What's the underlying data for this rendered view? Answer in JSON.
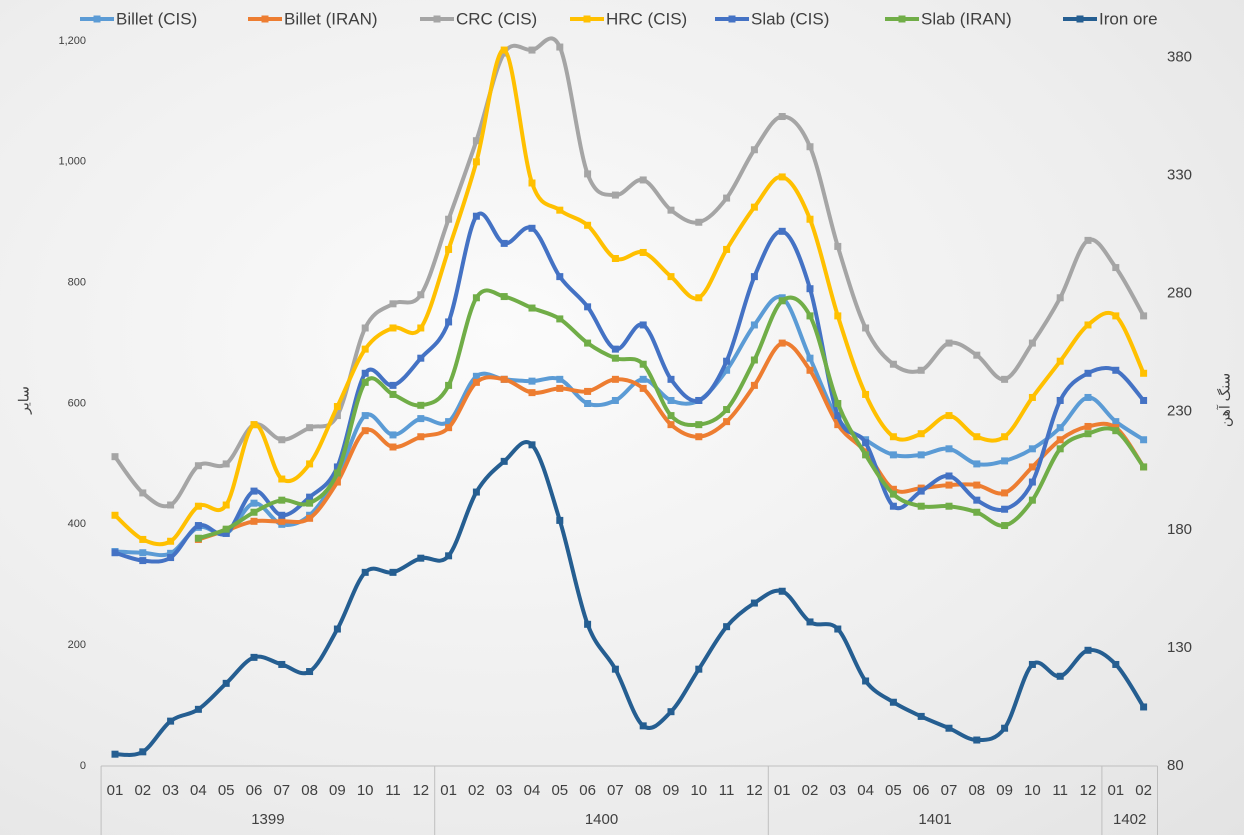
{
  "chart_data": {
    "type": "line",
    "y_label": "سایر",
    "y2_label": "سنگ آهن",
    "categories": [
      "01",
      "02",
      "03",
      "04",
      "05",
      "06",
      "07",
      "08",
      "09",
      "10",
      "11",
      "12",
      "01",
      "02",
      "03",
      "04",
      "05",
      "06",
      "07",
      "08",
      "09",
      "10",
      "11",
      "12",
      "01",
      "02",
      "03",
      "04",
      "05",
      "06",
      "07",
      "08",
      "09",
      "10",
      "11",
      "12",
      "01",
      "02"
    ],
    "year_groups": [
      {
        "label": "1399",
        "count": 12
      },
      {
        "label": "1400",
        "count": 12
      },
      {
        "label": "1401",
        "count": 12
      },
      {
        "label": "1402",
        "count": 2
      }
    ],
    "ylim": [
      0,
      1200
    ],
    "yticks": [
      0,
      200,
      400,
      600,
      800,
      {
        "value": 1000,
        "label": "1,000"
      },
      {
        "value": 1200,
        "label": "1,200"
      }
    ],
    "y2lim": [
      80,
      387
    ],
    "y2ticks": [
      80,
      130,
      180,
      230,
      280,
      330,
      380
    ],
    "grid": false,
    "smooth": true,
    "legend": "top",
    "series": [
      {
        "name": "Billet (CIS)",
        "color": "#5b9bd5",
        "values": [
          355,
          353,
          352,
          395,
          385,
          435,
          400,
          415,
          480,
          580,
          548,
          575,
          570,
          645,
          640,
          637,
          640,
          600,
          605,
          640,
          605,
          605,
          655,
          730,
          775,
          675,
          575,
          540,
          515,
          515,
          525,
          500,
          505,
          525,
          560,
          610,
          570,
          540
        ]
      },
      {
        "name": "Billet (IRAN)",
        "color": "#ed7d31",
        "values": [
          null,
          null,
          null,
          375,
          390,
          405,
          405,
          410,
          470,
          555,
          528,
          545,
          560,
          635,
          640,
          618,
          625,
          620,
          640,
          625,
          565,
          545,
          570,
          630,
          700,
          655,
          565,
          520,
          458,
          460,
          465,
          465,
          452,
          495,
          540,
          562,
          560,
          495
        ]
      },
      {
        "name": "CRC (CIS)",
        "color": "#a5a5a5",
        "values": [
          512,
          452,
          432,
          497,
          500,
          565,
          540,
          560,
          580,
          725,
          765,
          780,
          905,
          1035,
          1180,
          1185,
          1190,
          980,
          945,
          970,
          920,
          900,
          940,
          1020,
          1075,
          1025,
          860,
          725,
          665,
          655,
          700,
          680,
          640,
          700,
          775,
          870,
          825,
          745
        ]
      },
      {
        "name": "HRC (CIS)",
        "color": "#ffc000",
        "values": [
          415,
          375,
          372,
          430,
          432,
          565,
          475,
          500,
          595,
          690,
          725,
          725,
          855,
          1000,
          1185,
          965,
          920,
          895,
          840,
          850,
          810,
          775,
          855,
          925,
          975,
          905,
          745,
          615,
          545,
          550,
          580,
          545,
          545,
          610,
          670,
          730,
          745,
          650
        ]
      },
      {
        "name": "Slab (CIS)",
        "color": "#4472c4",
        "values": [
          353,
          340,
          345,
          398,
          385,
          455,
          415,
          445,
          495,
          650,
          630,
          675,
          735,
          910,
          865,
          890,
          810,
          760,
          690,
          730,
          640,
          605,
          670,
          810,
          885,
          790,
          580,
          535,
          430,
          455,
          480,
          440,
          425,
          470,
          605,
          650,
          655,
          605
        ]
      },
      {
        "name": "Slab (IRAN)",
        "color": "#70ad47",
        "values": [
          null,
          null,
          null,
          377,
          392,
          420,
          440,
          435,
          485,
          635,
          615,
          597,
          630,
          775,
          777,
          758,
          740,
          700,
          675,
          665,
          580,
          565,
          590,
          672,
          770,
          745,
          600,
          515,
          450,
          430,
          430,
          420,
          398,
          440,
          525,
          550,
          555,
          495
        ]
      },
      {
        "name": "Iron ore",
        "color": "#255e91",
        "axis": "y2",
        "values": [
          85,
          86,
          99,
          104,
          115,
          126,
          123,
          120,
          138,
          162,
          162,
          168,
          169,
          196,
          209,
          216,
          184,
          140,
          121,
          97,
          103,
          121,
          139,
          149,
          154,
          141,
          138,
          116,
          107,
          101,
          96,
          91,
          96,
          123,
          118,
          129,
          123,
          105
        ]
      }
    ]
  }
}
